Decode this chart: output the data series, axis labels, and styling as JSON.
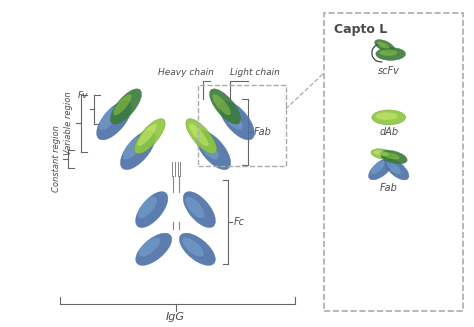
{
  "bg_color": "#ffffff",
  "blue_dark": "#4a6fa5",
  "blue_light": "#7ba7d4",
  "green_dark": "#3a7a3a",
  "green_light": "#8ec63f",
  "text_color": "#4a4a4a",
  "annotation_color": "#666666",
  "title": "Capto L",
  "labels": {
    "Fv": "Fv",
    "Heavy chain": "Heavy chain",
    "Light chain": "Light chain",
    "Variable region": "Variable region",
    "Constant region": "Constant region",
    "Fab": "Fab",
    "Fc": "Fc",
    "IgG": "IgG",
    "scFv": "scFv",
    "dAb": "dAb",
    "Fab2": "Fab"
  }
}
